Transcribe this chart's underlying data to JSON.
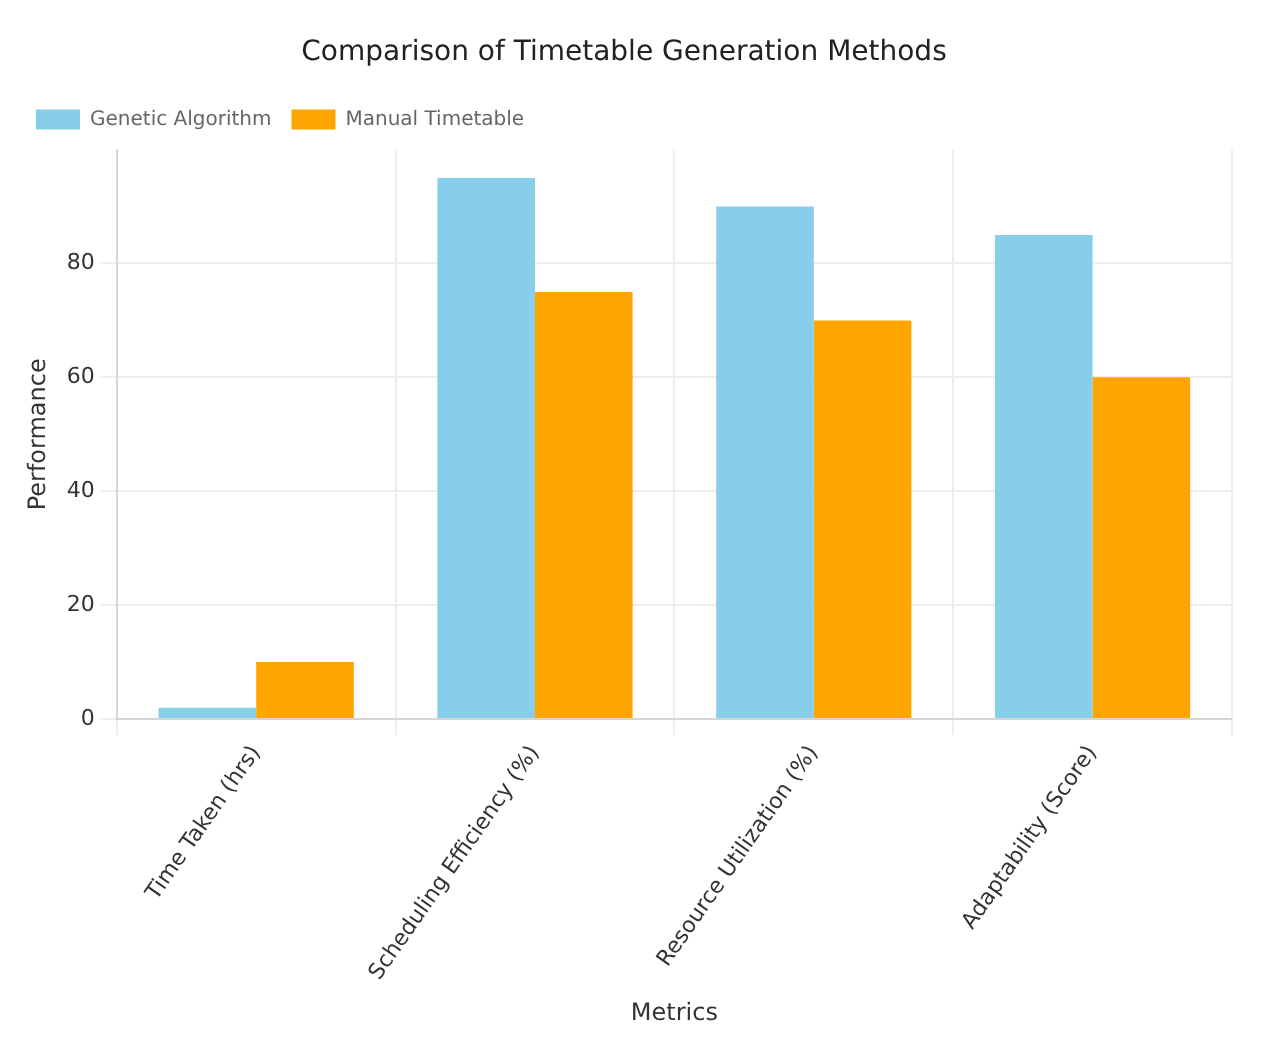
{
  "chart_data": {
    "type": "bar",
    "title": "Comparison of Timetable Generation Methods",
    "xlabel": "Metrics",
    "ylabel": "Performance",
    "categories": [
      "Time Taken (hrs)",
      "Scheduling Efficiency (%)",
      "Resource Utilization (%)",
      "Adaptability (Score)"
    ],
    "series": [
      {
        "name": "Genetic Algorithm",
        "color": "#87ceeb",
        "values": [
          2,
          95,
          90,
          85
        ]
      },
      {
        "name": "Manual Timetable",
        "color": "#ffa500",
        "values": [
          10,
          75,
          70,
          60
        ]
      }
    ],
    "ylim": [
      0,
      100
    ],
    "yticks": [
      0,
      20,
      40,
      60,
      80
    ],
    "grid": true,
    "legend": "top left"
  }
}
